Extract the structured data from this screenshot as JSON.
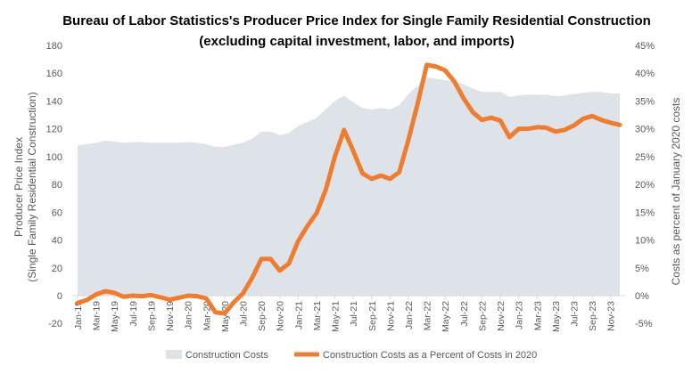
{
  "chart_data": {
    "type": "area+line",
    "title": "Bureau of Labor Statistics's Producer Price Index for Single Family Residential Construction",
    "subtitle": "(excluding capital investment, labor, and imports)",
    "ylabel_left": [
      "Producer Price Index",
      "(Single Family Residential Construction)"
    ],
    "ylabel_right": "Costs as percent of January 2020 costs",
    "ylim_left": [
      -20,
      180
    ],
    "yticks_left": [
      "-20",
      "0",
      "20",
      "40",
      "60",
      "80",
      "100",
      "120",
      "140",
      "160",
      "180"
    ],
    "ylim_right": [
      -5,
      45
    ],
    "yticks_right": [
      "-5%",
      "0%",
      "5%",
      "10%",
      "15%",
      "20%",
      "25%",
      "30%",
      "35%",
      "40%",
      "45%"
    ],
    "x": [
      "Jan-19",
      "Feb-19",
      "Mar-19",
      "Apr-19",
      "May-19",
      "Jun-19",
      "Jul-19",
      "Aug-19",
      "Sep-19",
      "Oct-19",
      "Nov-19",
      "Dec-19",
      "Jan-20",
      "Feb-20",
      "Mar-20",
      "Apr-20",
      "May-20",
      "Jun-20",
      "Jul-20",
      "Aug-20",
      "Sep-20",
      "Oct-20",
      "Nov-20",
      "Dec-20",
      "Jan-21",
      "Feb-21",
      "Mar-21",
      "Apr-21",
      "May-21",
      "Jun-21",
      "Jul-21",
      "Aug-21",
      "Sep-21",
      "Oct-21",
      "Nov-21",
      "Dec-21",
      "Jan-22",
      "Feb-22",
      "Mar-22",
      "Apr-22",
      "May-22",
      "Jun-22",
      "Jul-22",
      "Aug-22",
      "Sep-22",
      "Oct-22",
      "Nov-22",
      "Dec-22",
      "Jan-23",
      "Feb-23",
      "Mar-23",
      "Apr-23",
      "May-23",
      "Jun-23",
      "Jul-23",
      "Aug-23",
      "Sep-23",
      "Oct-23",
      "Nov-23",
      "Dec-23"
    ],
    "xtick_labels_shown": "every other month starting Jan-19",
    "series": [
      {
        "name": "Construction Costs",
        "type": "area",
        "axis": "left",
        "color": "#dee3ea",
        "values": [
          108,
          109,
          110,
          111.5,
          111,
          110,
          110.5,
          110.5,
          110,
          110,
          110,
          110,
          110.5,
          110,
          109,
          107,
          107,
          108.5,
          110,
          113,
          118,
          118,
          115.5,
          117,
          122,
          125,
          128,
          134,
          140,
          144,
          139,
          135,
          134,
          135,
          134,
          137,
          145,
          151,
          157,
          156,
          155,
          154,
          152,
          149,
          146.5,
          146.5,
          146.5,
          143,
          144,
          144.5,
          144.5,
          144.5,
          143.5,
          144,
          145,
          146,
          146.5,
          146.5,
          145.5,
          145.5
        ]
      },
      {
        "name": "Construction Costs as a Percent of Costs in 2020",
        "type": "line",
        "axis": "right",
        "color": "#ed7d31",
        "values": [
          -1.3,
          -0.8,
          0.2,
          0.8,
          0.5,
          -0.2,
          0,
          -0.1,
          0.1,
          -0.3,
          -0.7,
          -0.4,
          0,
          -0.1,
          -0.5,
          -3.0,
          -3.2,
          -1.2,
          0.4,
          3.2,
          6.6,
          6.6,
          4.5,
          5.8,
          9.8,
          12.5,
          14.8,
          19,
          25,
          29.8,
          26,
          22,
          21,
          21.6,
          21,
          22.2,
          28,
          34.5,
          41.5,
          41.2,
          40.5,
          38.5,
          35.5,
          33,
          31.6,
          32,
          31.5,
          28.5,
          30,
          30,
          30.3,
          30.2,
          29.5,
          29.8,
          30.6,
          31.8,
          32.3,
          31.6,
          31.1,
          30.7
        ]
      }
    ],
    "grid": false,
    "legend": "bottom"
  }
}
